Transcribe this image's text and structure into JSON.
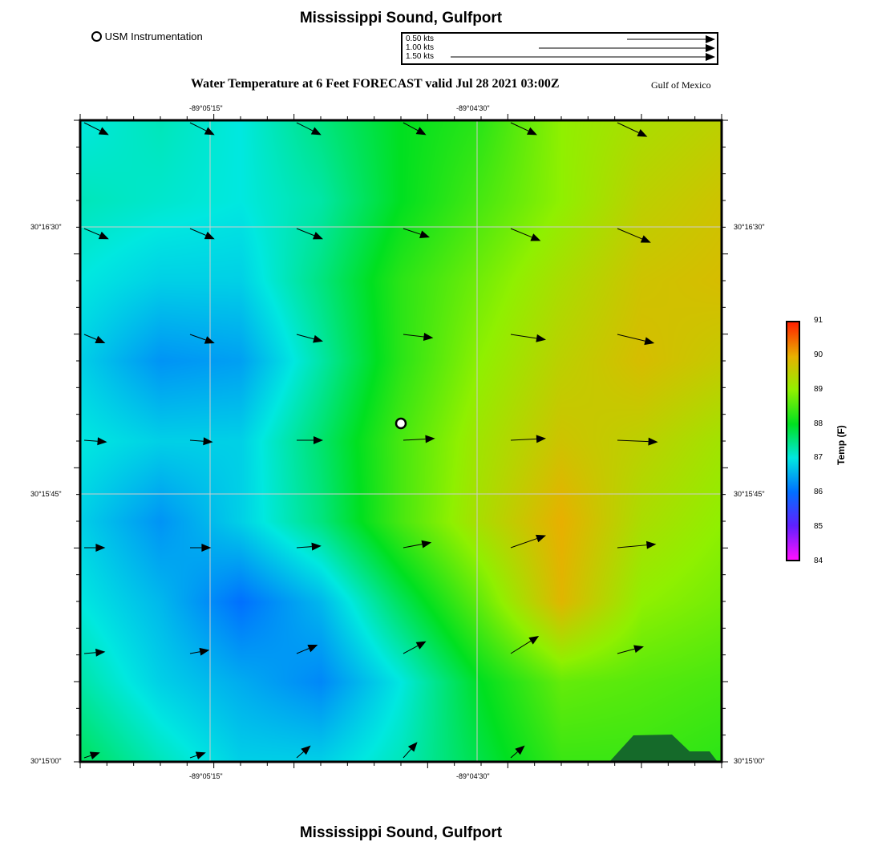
{
  "header": {
    "title": "Mississippi Sound, Gulfport",
    "subtitle": "Water Temperature at 6 Feet FORECAST valid Jul 28 2021 03:00Z",
    "region": "Gulf of Mexico",
    "footer_title": "Mississippi Sound, Gulfport"
  },
  "station_legend": {
    "label": "USM Instrumentation"
  },
  "vector_legend": [
    {
      "label": "0.50 kts",
      "speed": 0.5
    },
    {
      "label": "1.00 kts",
      "speed": 1.0
    },
    {
      "label": "1.50 kts",
      "speed": 1.5
    }
  ],
  "axes": {
    "lon_labels": [
      "-89°05'15\"",
      "-89°04'30\""
    ],
    "lat_labels": [
      "30°16'30\"",
      "30°15'45\"",
      "30°15'00\""
    ]
  },
  "colorbar": {
    "title": "Temp (F)",
    "ticks": [
      "91",
      "90",
      "89",
      "88",
      "87",
      "86",
      "85",
      "84"
    ],
    "min": 84,
    "max": 91,
    "stops": [
      "#ff10ff",
      "#6020ff",
      "#0070ff",
      "#00e8e0",
      "#00e020",
      "#90f000",
      "#e8b000",
      "#ff2000"
    ]
  },
  "land_color": "#156a2a",
  "chart_data": {
    "type": "heatmap",
    "title": "Water Temperature at 6 Feet FORECAST valid Jul 28 2021 03:00Z",
    "units": "F",
    "temperature_grid": [
      [
        87.0,
        87.2,
        87.0,
        87.5,
        88.0,
        88.3,
        89.0,
        89.3,
        89.5
      ],
      [
        87.2,
        87.1,
        87.0,
        87.3,
        88.0,
        88.5,
        89.0,
        89.5,
        89.7
      ],
      [
        87.0,
        86.8,
        86.8,
        87.5,
        88.3,
        88.8,
        89.3,
        89.7,
        89.8
      ],
      [
        86.8,
        86.3,
        86.4,
        87.3,
        88.3,
        89.0,
        89.5,
        89.8,
        89.6
      ],
      [
        87.0,
        86.8,
        86.8,
        87.6,
        88.5,
        89.2,
        89.7,
        89.5,
        89.2
      ],
      [
        86.8,
        86.3,
        86.8,
        87.5,
        88.5,
        89.3,
        90.0,
        89.3,
        89.0
      ],
      [
        87.0,
        86.6,
        86.0,
        86.6,
        87.7,
        88.7,
        89.9,
        89.0,
        88.8
      ],
      [
        87.3,
        86.8,
        86.5,
        86.2,
        87.0,
        88.0,
        88.7,
        88.6,
        88.5
      ],
      [
        87.7,
        87.2,
        86.8,
        86.8,
        87.2,
        87.8,
        88.4,
        88.4,
        88.3
      ]
    ],
    "current_vectors_kts": [
      [
        [
          0.14,
          -0.07
        ],
        [
          0.14,
          -0.07
        ],
        [
          0.14,
          -0.07
        ],
        [
          0.13,
          -0.07
        ],
        [
          0.15,
          -0.07
        ],
        [
          0.17,
          -0.08
        ]
      ],
      [
        [
          0.14,
          -0.06
        ],
        [
          0.14,
          -0.06
        ],
        [
          0.15,
          -0.06
        ],
        [
          0.15,
          -0.05
        ],
        [
          0.17,
          -0.07
        ],
        [
          0.19,
          -0.08
        ]
      ],
      [
        [
          0.12,
          -0.05
        ],
        [
          0.14,
          -0.05
        ],
        [
          0.15,
          -0.04
        ],
        [
          0.17,
          -0.02
        ],
        [
          0.2,
          -0.03
        ],
        [
          0.21,
          -0.05
        ]
      ],
      [
        [
          0.13,
          -0.01
        ],
        [
          0.13,
          -0.01
        ],
        [
          0.15,
          0.0
        ],
        [
          0.18,
          0.01
        ],
        [
          0.2,
          0.01
        ],
        [
          0.23,
          -0.01
        ]
      ],
      [
        [
          0.12,
          0.0
        ],
        [
          0.12,
          0.0
        ],
        [
          0.14,
          0.01
        ],
        [
          0.16,
          0.03
        ],
        [
          0.2,
          0.07
        ],
        [
          0.22,
          0.02
        ]
      ],
      [
        [
          0.12,
          0.01
        ],
        [
          0.11,
          0.02
        ],
        [
          0.12,
          0.05
        ],
        [
          0.13,
          0.07
        ],
        [
          0.16,
          0.1
        ],
        [
          0.15,
          0.04
        ]
      ],
      [
        [
          0.09,
          0.03
        ],
        [
          0.09,
          0.03
        ],
        [
          0.08,
          0.07
        ],
        [
          0.08,
          0.09
        ],
        [
          0.08,
          0.07
        ],
        [
          0.0,
          0.0
        ]
      ]
    ]
  }
}
